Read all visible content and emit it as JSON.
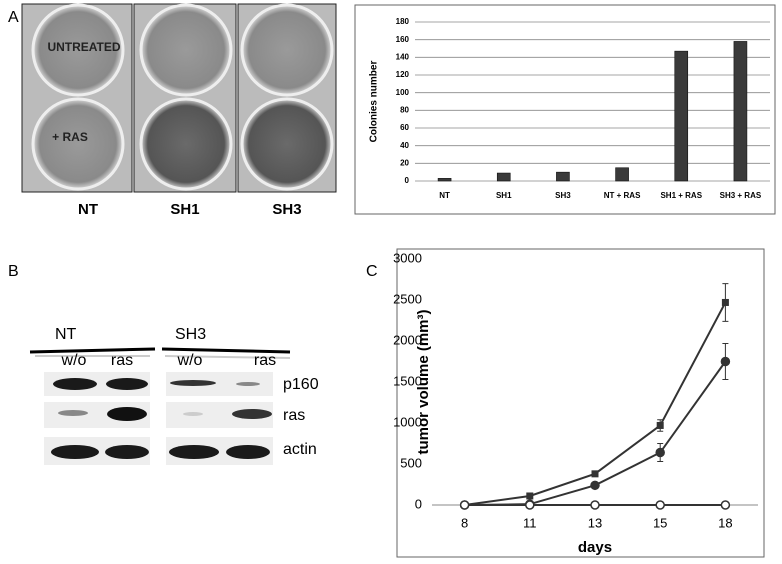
{
  "figure": {
    "panel_labels": [
      "A",
      "B",
      "C"
    ],
    "plates": {
      "row_labels": [
        "UNTREATED",
        "+ RAS"
      ],
      "column_labels": [
        "NT",
        "SH1",
        "SH3"
      ]
    },
    "blot": {
      "groups": [
        "NT",
        "SH3"
      ],
      "lanes": [
        "w/o",
        "ras",
        "w/o",
        "ras"
      ],
      "rows": [
        "p160",
        "ras",
        "actin"
      ]
    }
  },
  "chart_data": [
    {
      "type": "bar",
      "y_label": "Colonies number",
      "categories": [
        "NT",
        "SH1",
        "SH3",
        "NT + RAS",
        "SH1 + RAS",
        "SH3 + RAS"
      ],
      "values": [
        3,
        9,
        10,
        15,
        147,
        158
      ],
      "color": "#3a3a3a",
      "ylim": [
        0,
        180
      ],
      "yticks": [
        0,
        20,
        40,
        60,
        80,
        100,
        120,
        140,
        160,
        180
      ],
      "grid": true
    },
    {
      "type": "line",
      "y_label": "tumor volume (mm³)",
      "x_label": "days",
      "categories": [
        "8",
        "11",
        "13",
        "15",
        "18"
      ],
      "series": [
        {
          "color": "#333333",
          "marker": "square",
          "values": [
            0,
            110,
            380,
            970,
            2470
          ],
          "errors": [
            0,
            10,
            20,
            70,
            230
          ]
        },
        {
          "color": "#333333",
          "marker": "circle",
          "values": [
            0,
            10,
            240,
            640,
            1750
          ],
          "errors": [
            0,
            5,
            30,
            110,
            220
          ]
        },
        {
          "color": "#333333",
          "marker": "open-circle",
          "values": [
            0,
            0,
            0,
            0,
            0
          ],
          "errors": [
            0,
            0,
            0,
            0,
            0
          ]
        }
      ],
      "ylim": [
        0,
        3000
      ],
      "yticks": [
        0,
        500,
        1000,
        1500,
        2000,
        2500,
        3000
      ],
      "grid": false
    }
  ]
}
